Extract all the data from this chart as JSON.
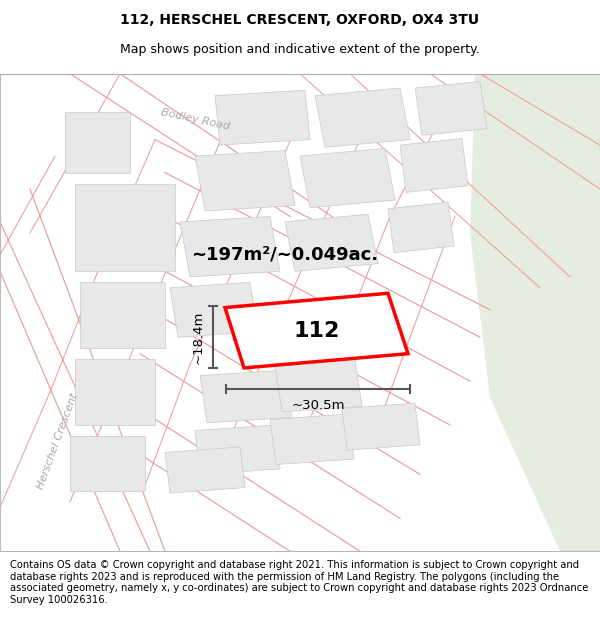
{
  "title_line1": "112, HERSCHEL CRESCENT, OXFORD, OX4 3TU",
  "title_line2": "Map shows position and indicative extent of the property.",
  "area_label": "~197m²/~0.049ac.",
  "plot_number": "112",
  "width_label": "~30.5m",
  "height_label": "~18.4m",
  "footer_text": "Contains OS data © Crown copyright and database right 2021. This information is subject to Crown copyright and database rights 2023 and is reproduced with the permission of HM Land Registry. The polygons (including the associated geometry, namely x, y co-ordinates) are subject to Crown copyright and database rights 2023 Ordnance Survey 100026316.",
  "map_bg": "#ffffff",
  "building_fill": "#e8e8e8",
  "building_outline": "#c8c8c8",
  "plot_outline_color": "#ff0000",
  "road_line_color": "#f0a0a0",
  "dim_line_color": "#555555",
  "street_label_color": "#aaaaaa",
  "green_area_color": "#e4ede0",
  "title_fontsize": 10,
  "subtitle_fontsize": 9,
  "area_fontsize": 13,
  "plot_num_fontsize": 16,
  "dim_fontsize": 9.5,
  "street_fontsize": 8,
  "footer_fontsize": 7.2
}
